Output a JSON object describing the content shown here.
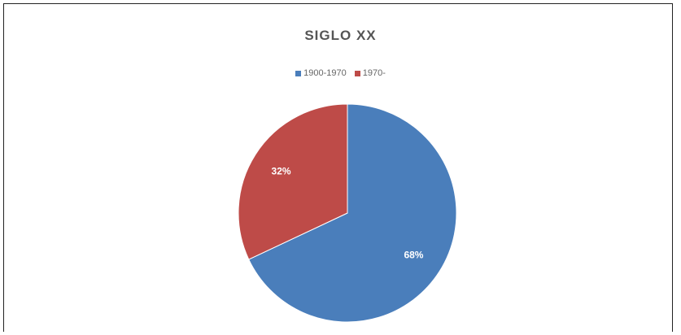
{
  "chart_data": {
    "type": "pie",
    "title": "SIGLO XX",
    "legend_position": "top",
    "slices": [
      {
        "label": "1900-1970",
        "value": 68,
        "value_label": "68%",
        "color": "#4a7ebb"
      },
      {
        "label": "1970-",
        "value": 32,
        "value_label": "32%",
        "color": "#be4b48"
      }
    ]
  }
}
